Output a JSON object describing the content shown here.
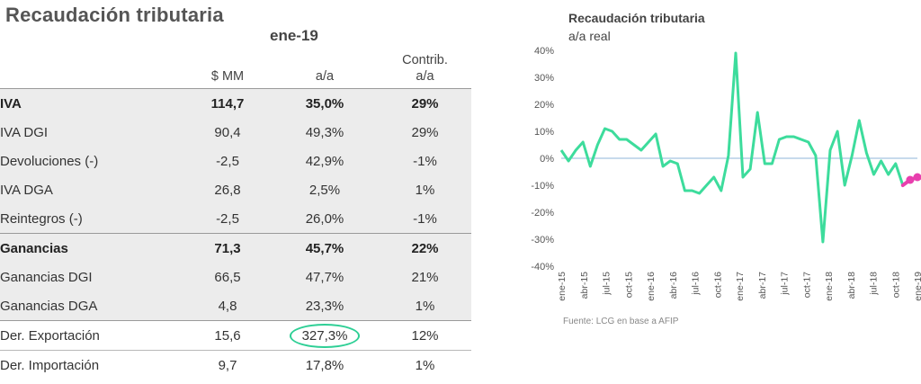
{
  "table": {
    "title": "Recaudación tributaria",
    "period": "ene-19",
    "headers": {
      "mm": "$ MM",
      "aa": "a/a",
      "contrib_line1": "Contrib.",
      "contrib_line2": "a/a"
    },
    "rows": [
      {
        "name": "IVA",
        "mm": "114,7",
        "aa": "35,0%",
        "contrib": "29%"
      },
      {
        "name": "IVA DGI",
        "mm": "90,4",
        "aa": "49,3%",
        "contrib": "29%"
      },
      {
        "name": "Devoluciones (-)",
        "mm": "-2,5",
        "aa": "42,9%",
        "contrib": "-1%"
      },
      {
        "name": "IVA DGA",
        "mm": "26,8",
        "aa": "2,5%",
        "contrib": "1%"
      },
      {
        "name": "Reintegros (-)",
        "mm": "-2,5",
        "aa": "26,0%",
        "contrib": "-1%"
      },
      {
        "name": "Ganancias",
        "mm": "71,3",
        "aa": "45,7%",
        "contrib": "22%"
      },
      {
        "name": "Ganancias DGI",
        "mm": "66,5",
        "aa": "47,7%",
        "contrib": "21%"
      },
      {
        "name": "Ganancias DGA",
        "mm": "4,8",
        "aa": "23,3%",
        "contrib": "1%"
      },
      {
        "name": "Der. Exportación",
        "mm": "15,6",
        "aa": "327,3%",
        "contrib": "12%"
      },
      {
        "name": "Der. Importación",
        "mm": "9,7",
        "aa": "17,8%",
        "contrib": "1%"
      }
    ]
  },
  "chart_data": {
    "type": "line",
    "title": "Recaudación tributaria",
    "subtitle": "a/a real",
    "source": "Fuente: LCG en base a AFIP",
    "ylim": [
      -40,
      40
    ],
    "yticks": [
      40,
      30,
      20,
      10,
      0,
      -10,
      -20,
      -30,
      -40
    ],
    "ytick_labels": [
      "40%",
      "30%",
      "20%",
      "10%",
      "0%",
      "-10%",
      "-20%",
      "-30%",
      "-40%"
    ],
    "xtick_labels": [
      "ene-15",
      "abr-15",
      "jul-15",
      "oct-15",
      "ene-16",
      "abr-16",
      "jul-16",
      "oct-16",
      "ene-17",
      "abr-17",
      "jul-17",
      "oct-17",
      "ene-18",
      "abr-18",
      "jul-18",
      "oct-18",
      "ene-19"
    ],
    "grid": false,
    "line_color": "#3ddc9c",
    "highlight_color": "#e83fae",
    "zero_line_color": "#8fb4d9",
    "values": [
      3,
      -1,
      3,
      6,
      -3,
      5,
      11,
      10,
      7,
      7,
      5,
      3,
      6,
      9,
      -3,
      -1,
      -2,
      -12,
      -12,
      -13,
      -10,
      -7,
      -12,
      1,
      39,
      -7,
      -4,
      17,
      -2,
      -2,
      7,
      8,
      8,
      7,
      6,
      1,
      -31,
      3,
      10,
      -10,
      1,
      14,
      2,
      -6,
      -1,
      -6,
      -2,
      -10,
      -8,
      -7
    ],
    "highlight_start_index": 47
  }
}
